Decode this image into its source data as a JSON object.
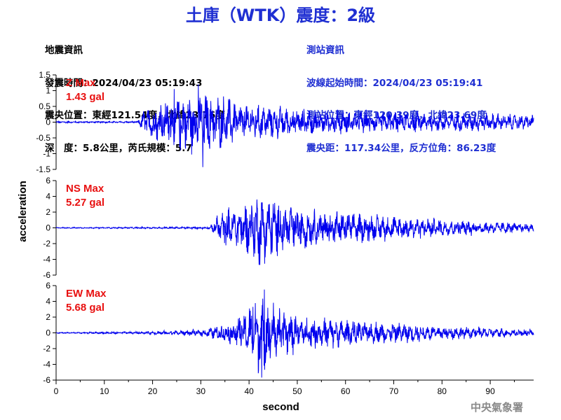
{
  "title": "土庫（WTK）震度：2級",
  "quake_info": {
    "header": "地震資訊",
    "time": "發震時間：2024/04/23 05:19:43",
    "location": "震央位置：東經121.54度，北緯23.76度",
    "depth_magnitude": "深　度：5.8公里，芮氏規模：5.7"
  },
  "station_info": {
    "header": "測站資訊",
    "wave_start": "波線起始時間：2024/04/23 05:19:41",
    "location": "測站位置：東經120.39度，北緯23.69度",
    "distance": "震央距：117.34公里，反方位角：86.23度"
  },
  "agency": "中央氣象署",
  "colors": {
    "title": "#1f2fd2",
    "trace": "#0000ee",
    "max_label": "#e81010",
    "agency": "#8a8a8a"
  },
  "chart_data": {
    "type": "line",
    "xlabel": "second",
    "ylabel": "acceleration",
    "xlim": [
      0,
      99
    ],
    "xticks": [
      0,
      10,
      20,
      30,
      40,
      50,
      60,
      70,
      80,
      90
    ],
    "panels": [
      {
        "name": "Z",
        "max_label": "Z Max",
        "max_value": "1.43 gal",
        "ylim": [
          -1.5,
          1.5
        ],
        "yticks": [
          -1.5,
          -1,
          -0.5,
          0,
          0.5,
          1,
          1.5
        ],
        "envelope": [
          [
            0,
            0.02
          ],
          [
            17,
            0.02
          ],
          [
            18.5,
            0.35
          ],
          [
            20,
            0.45
          ],
          [
            25,
            0.6
          ],
          [
            30,
            0.72
          ],
          [
            33,
            0.6
          ],
          [
            40,
            0.42
          ],
          [
            50,
            0.3
          ],
          [
            60,
            0.25
          ],
          [
            70,
            0.24
          ],
          [
            80,
            0.22
          ],
          [
            90,
            0.2
          ],
          [
            99,
            0.16
          ]
        ],
        "peaks": [
          [
            30.4,
            -1.43
          ],
          [
            29.5,
            1.2
          ],
          [
            24.5,
            1.05
          ]
        ]
      },
      {
        "name": "NS",
        "max_label": "NS Max",
        "max_value": "5.27 gal",
        "ylim": [
          -6,
          6
        ],
        "yticks": [
          -6,
          -4,
          -2,
          0,
          2,
          4,
          6
        ],
        "envelope": [
          [
            0,
            0.05
          ],
          [
            32,
            0.1
          ],
          [
            33.5,
            1.3
          ],
          [
            38,
            2.0
          ],
          [
            42,
            3.1
          ],
          [
            44,
            3.0
          ],
          [
            47,
            2.4
          ],
          [
            52,
            1.8
          ],
          [
            60,
            1.4
          ],
          [
            70,
            1.1
          ],
          [
            80,
            0.8
          ],
          [
            90,
            0.55
          ],
          [
            99,
            0.4
          ]
        ],
        "peaks": [
          [
            42.1,
            5.27
          ],
          [
            42.1,
            -4.7
          ],
          [
            35.8,
            2.6
          ]
        ]
      },
      {
        "name": "EW",
        "max_label": "EW Max",
        "max_value": "5.68 gal",
        "ylim": [
          -6,
          6
        ],
        "yticks": [
          -6,
          -4,
          -2,
          0,
          2,
          4,
          6
        ],
        "envelope": [
          [
            0,
            0.05
          ],
          [
            18,
            0.12
          ],
          [
            30,
            0.3
          ],
          [
            33,
            0.6
          ],
          [
            36,
            1.0
          ],
          [
            40,
            2.2
          ],
          [
            42.5,
            3.8
          ],
          [
            45,
            2.6
          ],
          [
            50,
            1.6
          ],
          [
            57,
            1.3
          ],
          [
            65,
            1.0
          ],
          [
            75,
            0.8
          ],
          [
            85,
            0.55
          ],
          [
            99,
            0.3
          ]
        ],
        "peaks": [
          [
            42.6,
            -5.68
          ],
          [
            43.2,
            5.5
          ],
          [
            40.8,
            3.3
          ]
        ]
      }
    ]
  }
}
